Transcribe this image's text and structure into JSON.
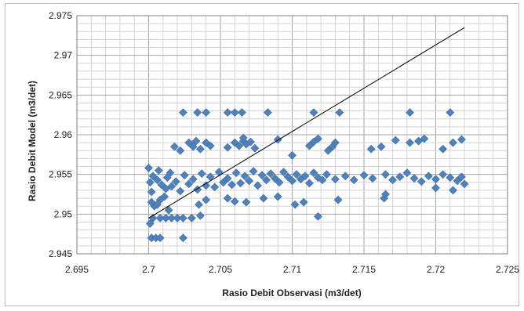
{
  "chart_data": {
    "type": "scatter",
    "title": "",
    "xlabel": "Rasio Debit Observasi (m3/det)",
    "ylabel": "Rasio Debit Model (m3/det)",
    "xlim": [
      2.695,
      2.725
    ],
    "ylim": [
      2.945,
      2.975
    ],
    "xticks": [
      "2.695",
      "2.7",
      "2.705",
      "2.71",
      "2.715",
      "2.72",
      "2.725"
    ],
    "yticks": [
      "2.945",
      "2.95",
      "2.955",
      "2.96",
      "2.965",
      "2.97",
      "2.975"
    ],
    "grid": true,
    "legend": "none",
    "marker_color": "#4f81bd",
    "line_color": "#000000",
    "reference_line": [
      [
        2.7,
        2.9495
      ],
      [
        2.722,
        2.9735
      ]
    ],
    "series": [
      {
        "points": [
          [
            2.7,
            2.9558
          ],
          [
            2.7003,
            2.9548
          ],
          [
            2.7006,
            2.9543
          ],
          [
            2.7009,
            2.9537
          ],
          [
            2.7012,
            2.9532
          ],
          [
            2.7015,
            2.9552
          ],
          [
            2.7002,
            2.9528
          ],
          [
            2.7008,
            2.9518
          ],
          [
            2.7004,
            2.951
          ],
          [
            2.7011,
            2.9522
          ],
          [
            2.7001,
            2.954
          ],
          [
            2.7007,
            2.9555
          ],
          [
            2.7013,
            2.9546
          ],
          [
            2.7016,
            2.9535
          ],
          [
            2.7019,
            2.9541
          ],
          [
            2.7022,
            2.9529
          ],
          [
            2.7025,
            2.9549
          ],
          [
            2.7028,
            2.9538
          ],
          [
            2.7031,
            2.9544
          ],
          [
            2.7034,
            2.9531
          ],
          [
            2.7037,
            2.9551
          ],
          [
            2.704,
            2.9536
          ],
          [
            2.7043,
            2.9547
          ],
          [
            2.7046,
            2.9534
          ],
          [
            2.7049,
            2.9553
          ],
          [
            2.7052,
            2.954
          ],
          [
            2.7055,
            2.9545
          ],
          [
            2.7058,
            2.9537
          ],
          [
            2.7061,
            2.9552
          ],
          [
            2.7064,
            2.9539
          ],
          [
            2.7067,
            2.9548
          ],
          [
            2.707,
            2.9542
          ],
          [
            2.7073,
            2.9554
          ],
          [
            2.7076,
            2.9536
          ],
          [
            2.7079,
            2.9549
          ],
          [
            2.7082,
            2.9543
          ],
          [
            2.7085,
            2.9551
          ],
          [
            2.7088,
            2.9545
          ],
          [
            2.7091,
            2.954
          ],
          [
            2.7094,
            2.9553
          ],
          [
            2.7097,
            2.9547
          ],
          [
            2.71,
            2.9542
          ],
          [
            2.7103,
            2.955
          ],
          [
            2.7106,
            2.9544
          ],
          [
            2.7109,
            2.9548
          ],
          [
            2.7112,
            2.9539
          ],
          [
            2.7115,
            2.9552
          ],
          [
            2.7118,
            2.9546
          ],
          [
            2.7121,
            2.9543
          ],
          [
            2.7124,
            2.955
          ],
          [
            2.713,
            2.9544
          ],
          [
            2.7137,
            2.9548
          ],
          [
            2.7143,
            2.9543
          ],
          [
            2.715,
            2.9549
          ],
          [
            2.7156,
            2.9545
          ],
          [
            2.7165,
            2.955
          ],
          [
            2.717,
            2.9543
          ],
          [
            2.7175,
            2.9547
          ],
          [
            2.718,
            2.9552
          ],
          [
            2.7185,
            2.9545
          ],
          [
            2.719,
            2.9541
          ],
          [
            2.7195,
            2.9548
          ],
          [
            2.72,
            2.9544
          ],
          [
            2.7205,
            2.955
          ],
          [
            2.721,
            2.9546
          ],
          [
            2.7215,
            2.9542
          ],
          [
            2.7218,
            2.9547
          ],
          [
            2.7002,
            2.947
          ],
          [
            2.7005,
            2.947
          ],
          [
            2.7008,
            2.947
          ],
          [
            2.7024,
            2.947
          ],
          [
            2.7001,
            2.9488
          ],
          [
            2.7003,
            2.9495
          ],
          [
            2.7008,
            2.9495
          ],
          [
            2.7012,
            2.9495
          ],
          [
            2.7016,
            2.9495
          ],
          [
            2.702,
            2.9495
          ],
          [
            2.7024,
            2.9495
          ],
          [
            2.703,
            2.9495
          ],
          [
            2.7036,
            2.9498
          ],
          [
            2.7014,
            2.9505
          ],
          [
            2.7002,
            2.9515
          ],
          [
            2.7006,
            2.9512
          ],
          [
            2.7035,
            2.9512
          ],
          [
            2.704,
            2.9518
          ],
          [
            2.7055,
            2.952
          ],
          [
            2.706,
            2.9516
          ],
          [
            2.7068,
            2.9515
          ],
          [
            2.708,
            2.952
          ],
          [
            2.709,
            2.9522
          ],
          [
            2.7102,
            2.9512
          ],
          [
            2.7108,
            2.9515
          ],
          [
            2.7118,
            2.9497
          ],
          [
            2.7132,
            2.9518
          ],
          [
            2.7164,
            2.952
          ],
          [
            2.7165,
            2.9525
          ],
          [
            2.72,
            2.9533
          ],
          [
            2.7212,
            2.953
          ],
          [
            2.722,
            2.9538
          ],
          [
            2.7018,
            2.9585
          ],
          [
            2.7022,
            2.958
          ],
          [
            2.7028,
            2.959
          ],
          [
            2.7031,
            2.9585
          ],
          [
            2.7033,
            2.9592
          ],
          [
            2.7036,
            2.9582
          ],
          [
            2.704,
            2.959
          ],
          [
            2.7043,
            2.9586
          ],
          [
            2.7055,
            2.9584
          ],
          [
            2.706,
            2.959
          ],
          [
            2.7063,
            2.9586
          ],
          [
            2.7066,
            2.9592
          ],
          [
            2.7068,
            2.9588
          ],
          [
            2.7071,
            2.9591
          ],
          [
            2.7074,
            2.9583
          ],
          [
            2.7066,
            2.9596
          ],
          [
            2.709,
            2.9594
          ],
          [
            2.71,
            2.9574
          ],
          [
            2.7112,
            2.9586
          ],
          [
            2.7115,
            2.9591
          ],
          [
            2.7118,
            2.9595
          ],
          [
            2.7125,
            2.958
          ],
          [
            2.7128,
            2.9585
          ],
          [
            2.713,
            2.959
          ],
          [
            2.7155,
            2.9582
          ],
          [
            2.7162,
            2.9585
          ],
          [
            2.7172,
            2.9593
          ],
          [
            2.7182,
            2.959
          ],
          [
            2.7188,
            2.9592
          ],
          [
            2.7192,
            2.9595
          ],
          [
            2.7205,
            2.9582
          ],
          [
            2.7212,
            2.959
          ],
          [
            2.7218,
            2.9594
          ],
          [
            2.7024,
            2.9628
          ],
          [
            2.7034,
            2.9628
          ],
          [
            2.704,
            2.9628
          ],
          [
            2.7055,
            2.9628
          ],
          [
            2.706,
            2.9628
          ],
          [
            2.7065,
            2.9628
          ],
          [
            2.7083,
            2.9628
          ],
          [
            2.7115,
            2.9628
          ],
          [
            2.7133,
            2.9628
          ],
          [
            2.7182,
            2.9628
          ],
          [
            2.721,
            2.9628
          ]
        ]
      }
    ]
  }
}
